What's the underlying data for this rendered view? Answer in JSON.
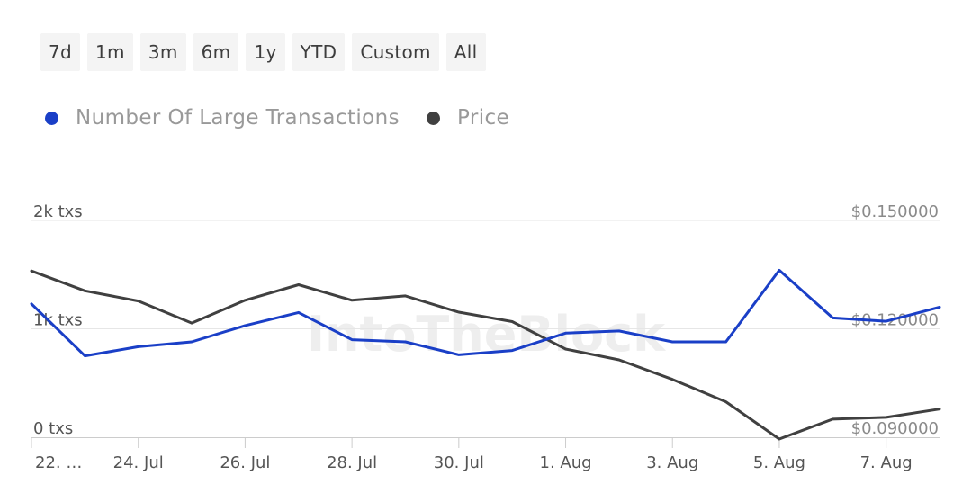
{
  "range_buttons": [
    "7d",
    "1m",
    "3m",
    "6m",
    "1y",
    "YTD",
    "Custom",
    "All"
  ],
  "watermark": "IntoTheBlock",
  "colors": {
    "series_a": "#1a3fc7",
    "series_b": "#404040",
    "grid": "#e6e6e6",
    "axis": "#cccccc"
  },
  "chart_data": {
    "type": "line",
    "legend_position": "top-left",
    "grid": true,
    "x": [
      "22. Jul",
      "23. Jul",
      "24. Jul",
      "25. Jul",
      "26. Jul",
      "27. Jul",
      "28. Jul",
      "29. Jul",
      "30. Jul",
      "31. Jul",
      "1. Aug",
      "2. Aug",
      "3. Aug",
      "4. Aug",
      "5. Aug",
      "6. Aug",
      "7. Aug",
      "8. Aug"
    ],
    "x_tick_labels": [
      "22. …",
      "24. Jul",
      "26. Jul",
      "28. Jul",
      "30. Jul",
      "1. Aug",
      "3. Aug",
      "5. Aug",
      "7. Aug"
    ],
    "y_left": {
      "ticks": [
        "0 txs",
        "1k txs",
        "2k txs"
      ],
      "range": [
        0,
        2000
      ]
    },
    "y_right": {
      "ticks": [
        "$0.090000",
        "$0.120000",
        "$0.150000"
      ],
      "range": [
        0.09,
        0.15
      ]
    },
    "series": [
      {
        "name": "Number Of Large Transactions",
        "axis": "left",
        "color": "#1a3fc7",
        "values": [
          1230,
          750,
          835,
          880,
          1030,
          1150,
          900,
          880,
          760,
          800,
          960,
          980,
          880,
          880,
          1540,
          1100,
          1070,
          1200
        ]
      },
      {
        "name": "Price",
        "axis": "right",
        "color": "#404040",
        "values": [
          0.136,
          0.1305,
          0.1277,
          0.1216,
          0.1279,
          0.1322,
          0.1279,
          0.1291,
          0.1246,
          0.122,
          0.1144,
          0.1114,
          0.106,
          0.0998,
          0.0895,
          0.095,
          0.0955,
          0.0978
        ]
      }
    ]
  }
}
